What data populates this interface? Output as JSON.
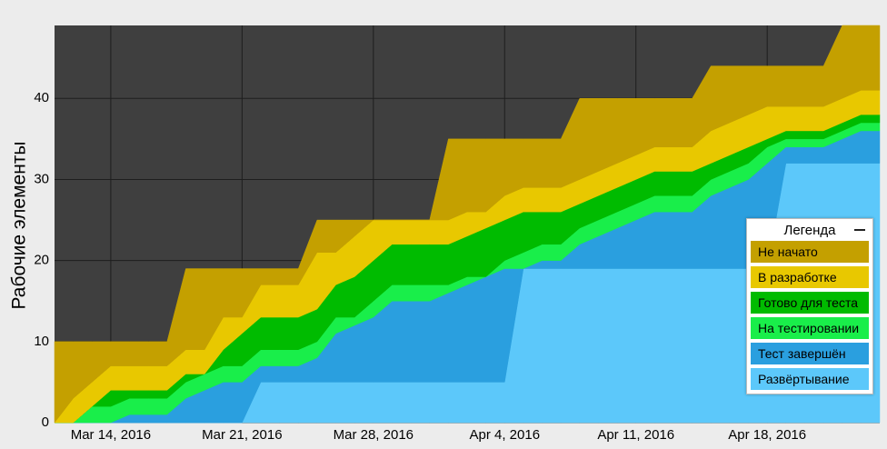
{
  "chart_data": {
    "type": "stacked_area",
    "y_label": "Рабочие элементы",
    "legend_title": "Легенда",
    "legend": "lower right",
    "grid": true,
    "x": [
      "2016-03-11",
      "2016-03-12",
      "2016-03-13",
      "2016-03-14",
      "2016-03-15",
      "2016-03-16",
      "2016-03-17",
      "2016-03-18",
      "2016-03-19",
      "2016-03-20",
      "2016-03-21",
      "2016-03-22",
      "2016-03-23",
      "2016-03-24",
      "2016-03-25",
      "2016-03-26",
      "2016-03-27",
      "2016-03-28",
      "2016-03-29",
      "2016-03-30",
      "2016-03-31",
      "2016-04-01",
      "2016-04-02",
      "2016-04-03",
      "2016-04-04",
      "2016-04-05",
      "2016-04-06",
      "2016-04-07",
      "2016-04-08",
      "2016-04-09",
      "2016-04-10",
      "2016-04-11",
      "2016-04-12",
      "2016-04-13",
      "2016-04-14",
      "2016-04-15",
      "2016-04-16",
      "2016-04-17",
      "2016-04-18",
      "2016-04-19",
      "2016-04-20",
      "2016-04-21",
      "2016-04-22",
      "2016-04-23",
      "2016-04-24"
    ],
    "xlim": [
      "2016-03-11",
      "2016-04-24"
    ],
    "xticks": [
      {
        "value": "2016-03-14",
        "label": "Mar 14, 2016"
      },
      {
        "value": "2016-03-21",
        "label": "Mar 21, 2016"
      },
      {
        "value": "2016-03-28",
        "label": "Mar 28, 2016"
      },
      {
        "value": "2016-04-04",
        "label": "Apr 4, 2016"
      },
      {
        "value": "2016-04-11",
        "label": "Apr 11, 2016"
      },
      {
        "value": "2016-04-18",
        "label": "Apr 18, 2016"
      }
    ],
    "ylim": [
      0,
      49
    ],
    "yticks": [
      0,
      10,
      20,
      30,
      40
    ],
    "series": [
      {
        "name": "Развёртывание",
        "color": "#5cc8fa",
        "values": [
          0,
          0,
          0,
          0,
          0,
          0,
          0,
          0,
          0,
          0,
          0,
          5,
          5,
          5,
          5,
          5,
          5,
          5,
          5,
          5,
          5,
          5,
          5,
          5,
          5,
          19,
          19,
          19,
          19,
          19,
          19,
          19,
          19,
          19,
          19,
          19,
          19,
          19,
          19,
          32,
          32,
          32,
          32,
          32,
          32
        ]
      },
      {
        "name": "Тест завершён",
        "color": "#2a9fdf",
        "values": [
          0,
          0,
          0,
          0,
          1,
          1,
          1,
          3,
          4,
          5,
          5,
          2,
          2,
          2,
          3,
          6,
          7,
          8,
          10,
          10,
          10,
          11,
          12,
          13,
          14,
          0,
          1,
          1,
          3,
          4,
          5,
          6,
          7,
          7,
          7,
          9,
          10,
          11,
          13,
          2,
          2,
          2,
          3,
          4,
          4
        ]
      },
      {
        "name": "На тестировании",
        "color": "#19ee4a",
        "values": [
          0,
          0,
          2,
          2,
          2,
          2,
          2,
          2,
          2,
          2,
          2,
          2,
          2,
          2,
          2,
          2,
          1,
          2,
          2,
          2,
          2,
          1,
          1,
          0,
          1,
          2,
          2,
          2,
          2,
          2,
          2,
          2,
          2,
          2,
          2,
          2,
          2,
          2,
          2,
          1,
          1,
          1,
          1,
          1,
          1
        ]
      },
      {
        "name": "Готово для теста",
        "color": "#00bb00",
        "values": [
          0,
          0,
          0,
          2,
          1,
          1,
          1,
          1,
          0,
          2,
          4,
          4,
          4,
          4,
          4,
          4,
          5,
          5,
          5,
          5,
          5,
          5,
          5,
          6,
          5,
          5,
          4,
          4,
          3,
          3,
          3,
          3,
          3,
          3,
          3,
          2,
          2,
          2,
          1,
          1,
          1,
          1,
          1,
          1,
          1
        ]
      },
      {
        "name": "В разработке",
        "color": "#e8c800",
        "values": [
          0,
          3,
          3,
          3,
          3,
          3,
          3,
          3,
          3,
          4,
          2,
          4,
          4,
          4,
          7,
          4,
          5,
          5,
          3,
          3,
          3,
          3,
          3,
          2,
          3,
          3,
          3,
          3,
          3,
          3,
          3,
          3,
          3,
          3,
          3,
          4,
          4,
          4,
          4,
          3,
          3,
          3,
          3,
          3,
          3
        ]
      },
      {
        "name": "Не начато",
        "color": "#c4a000",
        "values": [
          10,
          7,
          5,
          3,
          3,
          3,
          3,
          10,
          10,
          6,
          6,
          2,
          2,
          2,
          4,
          4,
          2,
          0,
          0,
          0,
          0,
          10,
          9,
          9,
          7,
          6,
          6,
          6,
          10,
          9,
          8,
          7,
          6,
          6,
          6,
          8,
          7,
          6,
          5,
          5,
          5,
          5,
          9,
          8,
          8
        ]
      }
    ]
  }
}
